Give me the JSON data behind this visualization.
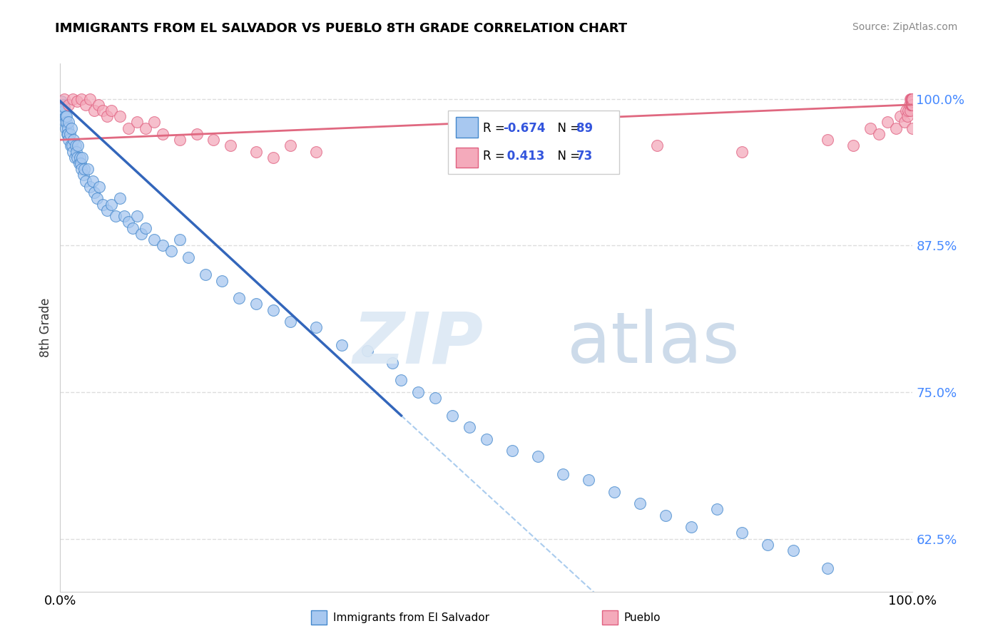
{
  "title": "IMMIGRANTS FROM EL SALVADOR VS PUEBLO 8TH GRADE CORRELATION CHART",
  "source": "Source: ZipAtlas.com",
  "ylabel": "8th Grade",
  "xlim": [
    0.0,
    100.0
  ],
  "ylim": [
    58.0,
    103.0
  ],
  "ytick_values": [
    62.5,
    75.0,
    87.5,
    100.0
  ],
  "blue_R": "-0.674",
  "blue_N": "89",
  "pink_R": "0.413",
  "pink_N": "73",
  "blue_color": "#A8C8F0",
  "pink_color": "#F4AABB",
  "blue_edge_color": "#4488CC",
  "pink_edge_color": "#E06080",
  "blue_line_color": "#3366BB",
  "pink_line_color": "#E06880",
  "legend_blue_label": "Immigrants from El Salvador",
  "legend_pink_label": "Pueblo",
  "blue_scatter_x": [
    0.1,
    0.15,
    0.2,
    0.25,
    0.3,
    0.35,
    0.4,
    0.45,
    0.5,
    0.55,
    0.6,
    0.65,
    0.7,
    0.75,
    0.8,
    0.85,
    0.9,
    0.95,
    1.0,
    1.1,
    1.2,
    1.3,
    1.4,
    1.5,
    1.6,
    1.7,
    1.8,
    1.9,
    2.0,
    2.1,
    2.2,
    2.3,
    2.4,
    2.5,
    2.6,
    2.7,
    2.8,
    3.0,
    3.2,
    3.5,
    3.8,
    4.0,
    4.3,
    4.6,
    5.0,
    5.5,
    6.0,
    6.5,
    7.0,
    7.5,
    8.0,
    8.5,
    9.0,
    9.5,
    10.0,
    11.0,
    12.0,
    13.0,
    14.0,
    15.0,
    17.0,
    19.0,
    21.0,
    23.0,
    25.0,
    27.0,
    30.0,
    33.0,
    36.0,
    39.0,
    40.0,
    42.0,
    44.0,
    46.0,
    48.0,
    50.0,
    53.0,
    56.0,
    59.0,
    62.0,
    65.0,
    68.0,
    71.0,
    74.0,
    77.0,
    80.0,
    83.0,
    86.0,
    90.0
  ],
  "blue_scatter_y": [
    99.5,
    99.8,
    99.2,
    99.0,
    98.8,
    99.5,
    98.5,
    99.0,
    99.3,
    98.0,
    98.5,
    97.5,
    98.0,
    98.5,
    97.0,
    97.5,
    97.0,
    98.0,
    96.5,
    97.0,
    96.0,
    97.5,
    96.0,
    95.5,
    96.5,
    95.0,
    96.0,
    95.5,
    95.0,
    96.0,
    94.5,
    95.0,
    94.5,
    94.0,
    95.0,
    93.5,
    94.0,
    93.0,
    94.0,
    92.5,
    93.0,
    92.0,
    91.5,
    92.5,
    91.0,
    90.5,
    91.0,
    90.0,
    91.5,
    90.0,
    89.5,
    89.0,
    90.0,
    88.5,
    89.0,
    88.0,
    87.5,
    87.0,
    88.0,
    86.5,
    85.0,
    84.5,
    83.0,
    82.5,
    82.0,
    81.0,
    80.5,
    79.0,
    78.5,
    77.5,
    76.0,
    75.0,
    74.5,
    73.0,
    72.0,
    71.0,
    70.0,
    69.5,
    68.0,
    67.5,
    66.5,
    65.5,
    64.5,
    63.5,
    65.0,
    63.0,
    62.0,
    61.5,
    60.0
  ],
  "pink_scatter_x": [
    0.5,
    1.0,
    1.5,
    2.0,
    2.5,
    3.0,
    3.5,
    4.0,
    4.5,
    5.0,
    5.5,
    6.0,
    7.0,
    8.0,
    9.0,
    10.0,
    11.0,
    12.0,
    14.0,
    16.0,
    18.0,
    20.0,
    23.0,
    25.0,
    27.0,
    30.0,
    50.0,
    60.0,
    70.0,
    80.0,
    90.0,
    93.0,
    95.0,
    96.0,
    97.0,
    98.0,
    98.5,
    99.0,
    99.2,
    99.4,
    99.5,
    99.6,
    99.7,
    99.75,
    99.8,
    99.82,
    99.84,
    99.86,
    99.88,
    99.9,
    99.91,
    99.92,
    99.93,
    99.94,
    99.95,
    99.96,
    99.97,
    99.98,
    99.99,
    100.0,
    100.0,
    100.0,
    100.0,
    100.0,
    100.0,
    100.0,
    100.0,
    100.0,
    100.0,
    100.0,
    100.0,
    100.0,
    100.0
  ],
  "pink_scatter_y": [
    100.0,
    99.5,
    100.0,
    99.8,
    100.0,
    99.5,
    100.0,
    99.0,
    99.5,
    99.0,
    98.5,
    99.0,
    98.5,
    97.5,
    98.0,
    97.5,
    98.0,
    97.0,
    96.5,
    97.0,
    96.5,
    96.0,
    95.5,
    95.0,
    96.0,
    95.5,
    95.0,
    95.5,
    96.0,
    95.5,
    96.5,
    96.0,
    97.5,
    97.0,
    98.0,
    97.5,
    98.5,
    98.0,
    99.0,
    98.5,
    99.0,
    99.5,
    99.0,
    100.0,
    99.5,
    100.0,
    99.5,
    100.0,
    99.8,
    100.0,
    99.5,
    100.0,
    99.8,
    100.0,
    99.5,
    100.0,
    99.8,
    100.0,
    99.5,
    100.0,
    99.8,
    100.0,
    99.5,
    100.0,
    99.8,
    99.5,
    100.0,
    99.5,
    100.0,
    99.8,
    99.5,
    100.0,
    97.5
  ],
  "blue_line_start_x": 0.0,
  "blue_line_start_y": 99.8,
  "blue_line_end_x": 40.0,
  "blue_line_end_y": 73.0,
  "blue_dash_start_x": 40.0,
  "blue_dash_start_y": 73.0,
  "blue_dash_end_x": 100.0,
  "blue_dash_end_y": 33.0,
  "pink_line_start_x": 0.0,
  "pink_line_start_y": 96.5,
  "pink_line_end_x": 100.0,
  "pink_line_end_y": 99.5
}
